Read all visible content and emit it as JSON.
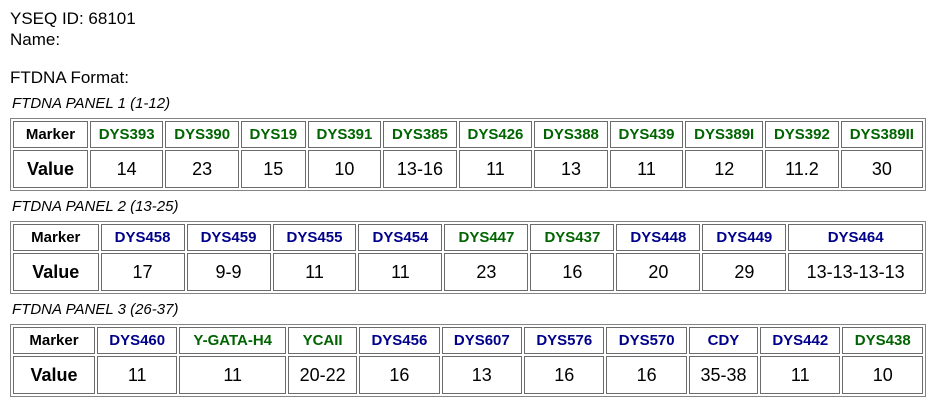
{
  "header": {
    "yseq_line": "YSEQ ID: 68101",
    "name_line": "Name:",
    "format_line": "FTDNA Format:"
  },
  "colors": {
    "green": "#006400",
    "blue": "#00008B"
  },
  "panels": [
    {
      "title": "FTDNA PANEL 1 (1-12)",
      "marker_header": "Marker",
      "value_header": "Value",
      "markers": [
        {
          "name": "DYS393",
          "value": "14",
          "color": "green"
        },
        {
          "name": "DYS390",
          "value": "23",
          "color": "green"
        },
        {
          "name": "DYS19",
          "value": "15",
          "color": "green"
        },
        {
          "name": "DYS391",
          "value": "10",
          "color": "green"
        },
        {
          "name": "DYS385",
          "value": "13-16",
          "color": "green"
        },
        {
          "name": "DYS426",
          "value": "11",
          "color": "green"
        },
        {
          "name": "DYS388",
          "value": "13",
          "color": "green"
        },
        {
          "name": "DYS439",
          "value": "11",
          "color": "green"
        },
        {
          "name": "DYS389I",
          "value": "12",
          "color": "green"
        },
        {
          "name": "DYS392",
          "value": "11.2",
          "color": "green"
        },
        {
          "name": "DYS389II",
          "value": "30",
          "color": "green"
        }
      ]
    },
    {
      "title": "FTDNA PANEL 2 (13-25)",
      "marker_header": "Marker",
      "value_header": "Value",
      "markers": [
        {
          "name": "DYS458",
          "value": "17",
          "color": "blue"
        },
        {
          "name": "DYS459",
          "value": "9-9",
          "color": "blue"
        },
        {
          "name": "DYS455",
          "value": "11",
          "color": "blue"
        },
        {
          "name": "DYS454",
          "value": "11",
          "color": "blue"
        },
        {
          "name": "DYS447",
          "value": "23",
          "color": "green"
        },
        {
          "name": "DYS437",
          "value": "16",
          "color": "green"
        },
        {
          "name": "DYS448",
          "value": "20",
          "color": "blue"
        },
        {
          "name": "DYS449",
          "value": "29",
          "color": "blue"
        },
        {
          "name": "DYS464",
          "value": "13-13-13-13",
          "color": "blue"
        }
      ]
    },
    {
      "title": "FTDNA PANEL 3 (26-37)",
      "marker_header": "Marker",
      "value_header": "Value",
      "markers": [
        {
          "name": "DYS460",
          "value": "11",
          "color": "blue"
        },
        {
          "name": "Y-GATA-H4",
          "value": "11",
          "color": "green"
        },
        {
          "name": "YCAII",
          "value": "20-22",
          "color": "green"
        },
        {
          "name": "DYS456",
          "value": "16",
          "color": "blue"
        },
        {
          "name": "DYS607",
          "value": "13",
          "color": "blue"
        },
        {
          "name": "DYS576",
          "value": "16",
          "color": "blue"
        },
        {
          "name": "DYS570",
          "value": "16",
          "color": "blue"
        },
        {
          "name": "CDY",
          "value": "35-38",
          "color": "blue"
        },
        {
          "name": "DYS442",
          "value": "11",
          "color": "blue"
        },
        {
          "name": "DYS438",
          "value": "10",
          "color": "green"
        }
      ]
    }
  ]
}
